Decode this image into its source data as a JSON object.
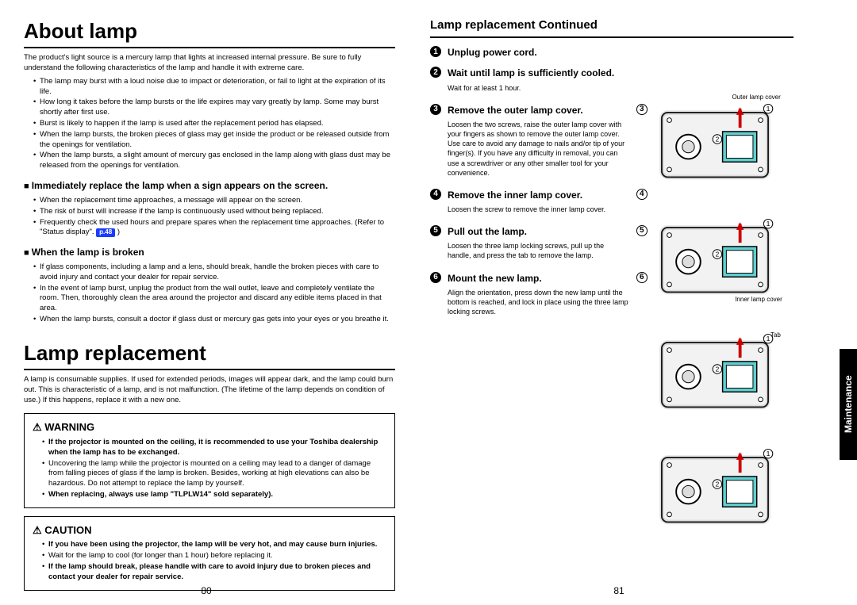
{
  "left": {
    "h1a": "About lamp",
    "intro": "The product's light source is a mercury lamp that lights at increased internal pressure. Be sure to fully understand the following characteristics of the lamp and handle it with extreme care.",
    "bullets1": [
      "The lamp may burst with a loud noise due to impact or deterioration, or fail to light at the expiration of its life.",
      "How long it takes before the lamp bursts or the life expires may vary greatly by lamp. Some may burst shortly after first use.",
      "Burst is likely to happen if the lamp is used after the replacement period has elapsed.",
      "When the lamp bursts, the broken pieces of glass may get inside the product or be released outside from the openings for ventilation.",
      "When the lamp bursts, a slight amount of mercury gas enclosed in the lamp along with glass dust may be released from the openings for ventilation."
    ],
    "sq1": "Immediately replace the lamp when a sign appears on the screen.",
    "bullets2": [
      "When the replacement time approaches, a message will appear on the screen.",
      "The risk of burst will increase if the lamp is continuously used without being replaced.",
      "Frequently check the used hours and prepare spares when the replacement time approaches. (Refer to \"Status display\"."
    ],
    "pref": "p.48",
    "sq2": "When the lamp is broken",
    "bullets3": [
      "If glass components, including a lamp and a lens, should break, handle the broken pieces with care to avoid injury and contact your dealer for repair service.",
      "In the event of lamp burst, unplug the product from the wall outlet, leave and completely ventilate the room. Then, thoroughly clean the area around the projector and discard any edible items placed in that area.",
      "When the lamp bursts, consult a doctor if glass dust or mercury gas gets into your eyes or you breathe it."
    ],
    "h1b": "Lamp replacement",
    "intro2": "A lamp is consumable supplies. If used for extended periods, images will appear dark, and the lamp could burn out. This is characteristic of a lamp, and is not malfunction. (The lifetime of the lamp depends on condition of use.) If this happens, replace it with a new one.",
    "warn_title": "WARNING",
    "warn_items": [
      "If the projector is mounted on the ceiling, it is recommended to use your Toshiba dealership when the lamp has to be exchanged.",
      "Uncovering the lamp while the projector is mounted on a ceiling may lead to a danger of damage from falling pieces of glass if the lamp is broken. Besides, working at high elevations can also be hazardous. Do not attempt to replace the lamp by yourself.",
      "When replacing, always use lamp \"TLPLW14\" sold separately)."
    ],
    "caution_title": "CAUTION",
    "caution_items": [
      "If you have been using the projector, the lamp will be very hot, and may cause burn injuries.",
      "Wait for the lamp to cool (for longer than 1 hour) before replacing it.",
      "If the lamp should break, please handle with care to avoid injury due to broken pieces and contact your dealer for repair service."
    ],
    "pagenum": "80"
  },
  "right": {
    "h2": "Lamp replacement Continued",
    "steps": [
      {
        "n": "1",
        "title": "Unplug power cord.",
        "body": "",
        "fig": false
      },
      {
        "n": "2",
        "title": "Wait until lamp is sufficiently cooled.",
        "body": "Wait for at least 1 hour.",
        "fig": false
      },
      {
        "n": "3",
        "title": "Remove the outer lamp cover.",
        "body": "Loosen the two screws, raise the outer lamp cover with your fingers as shown to remove the outer lamp cover. Use care to avoid any damage to nails and/or tip of your finger(s). If you have any difficulty in removal, you can use a screwdriver or any other smaller tool for your convenience.",
        "fig": true,
        "cap": "Outer lamp cover"
      },
      {
        "n": "4",
        "title": "Remove the inner lamp cover.",
        "body": "Loosen the screw to remove the inner lamp cover.",
        "fig": true,
        "cap": "Inner lamp cover"
      },
      {
        "n": "5",
        "title": "Pull out the lamp.",
        "body": "Loosen the three lamp locking screws, pull up the handle, and press the tab to remove the lamp.",
        "fig": true,
        "cap": "Tab"
      },
      {
        "n": "6",
        "title": "Mount the new lamp.",
        "body": "Align the orientation, press down the new lamp until the bottom is reached, and lock in place using the three lamp locking screws.",
        "fig": true,
        "cap": ""
      }
    ],
    "tab": "Maintenance",
    "pagenum": "81"
  },
  "colors": {
    "accent": "#5fcfcf",
    "bg": "#ffffff"
  }
}
